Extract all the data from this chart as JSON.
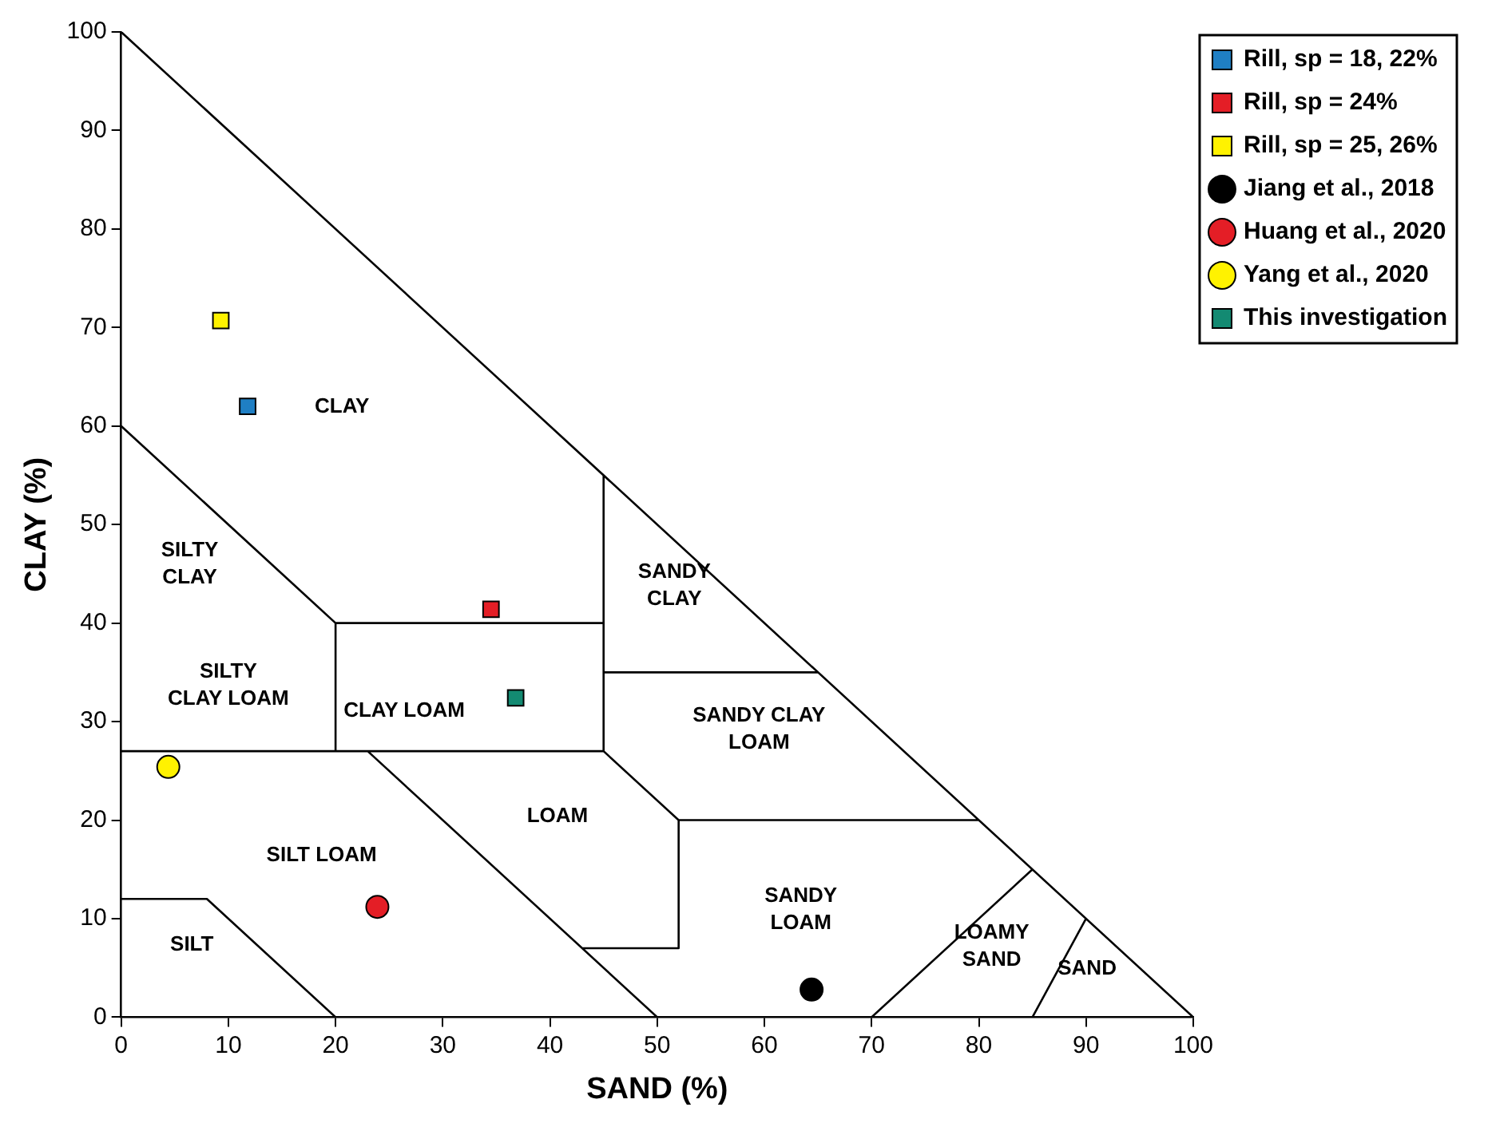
{
  "chart_data": {
    "type": "scatter",
    "xlabel": "SAND (%)",
    "ylabel": "CLAY (%)",
    "xlim": [
      0,
      100
    ],
    "ylim": [
      0,
      100
    ],
    "xticks": [
      0,
      10,
      20,
      30,
      40,
      50,
      60,
      70,
      80,
      90,
      100
    ],
    "yticks": [
      0,
      10,
      20,
      30,
      40,
      50,
      60,
      70,
      80,
      90,
      100
    ],
    "grid": false,
    "legend": "top right",
    "series": [
      {
        "name": "Rill, sp = 18, 22%",
        "type": "scatter",
        "marker": "square",
        "color": "#1f7fc4",
        "x": [
          11.8
        ],
        "values": [
          62
        ]
      },
      {
        "name": "Rill, sp = 24%",
        "type": "scatter",
        "marker": "square",
        "color": "#e41e26",
        "x": [
          34.5
        ],
        "values": [
          41.4
        ]
      },
      {
        "name": "Rill, sp = 25, 26%",
        "type": "scatter",
        "marker": "square",
        "color": "#fff200",
        "x": [
          9.3
        ],
        "values": [
          70.7
        ]
      },
      {
        "name": "Jiang et al., 2018",
        "type": "scatter",
        "marker": "circle",
        "color": "#000000",
        "x": [
          64.4
        ],
        "values": [
          2.8
        ]
      },
      {
        "name": "Huang et al., 2020",
        "type": "scatter",
        "marker": "circle",
        "color": "#e41e26",
        "x": [
          23.9
        ],
        "values": [
          11.2
        ]
      },
      {
        "name": "Yang et al., 2020",
        "type": "scatter",
        "marker": "circle",
        "color": "#fff200",
        "x": [
          4.4
        ],
        "values": [
          25.4
        ]
      },
      {
        "name": "This investigation",
        "type": "scatter",
        "marker": "square",
        "color": "#138a72",
        "x": [
          36.8
        ],
        "values": [
          32.4
        ]
      },
      {
        "type": "line",
        "marker": "none",
        "color": "#000000",
        "x": [
          0,
          100,
          null,
          0,
          20,
          45,
          null,
          20,
          20,
          null,
          0,
          45,
          null,
          45,
          45,
          null,
          45,
          65,
          null,
          23,
          50,
          null,
          45,
          52,
          52,
          null,
          52,
          80,
          null,
          43,
          52,
          null,
          0,
          8,
          20,
          null,
          70,
          85,
          null,
          85,
          90
        ],
        "values": [
          100,
          0,
          null,
          60,
          40,
          40,
          null,
          40,
          27,
          null,
          27,
          27,
          null,
          27,
          55,
          null,
          35,
          35,
          null,
          27,
          0,
          null,
          27,
          20,
          7,
          null,
          20,
          20,
          null,
          7,
          7,
          null,
          12,
          12,
          0,
          null,
          0,
          15,
          null,
          0,
          10
        ]
      }
    ],
    "annotations": [
      "CLAY",
      "SILTY\nCLAY",
      "SILTY\nCLAY LOAM",
      "CLAY LOAM",
      "SANDY\nCLAY",
      "SANDY CLAY\nLOAM",
      "LOAM",
      "SILT LOAM",
      "SILT",
      "SANDY\nLOAM",
      "LOAMY\nSAND",
      "SAND"
    ]
  }
}
